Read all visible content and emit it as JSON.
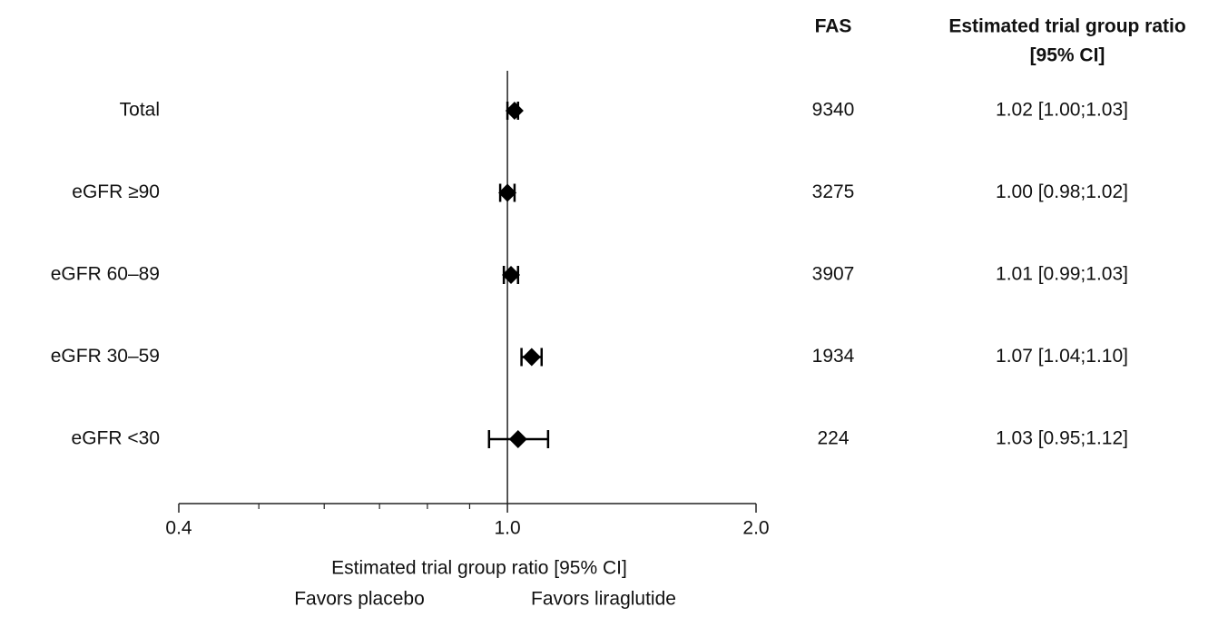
{
  "chart_data": {
    "type": "forest",
    "categories": [
      "Total",
      "eGFR ≥90",
      "eGFR 60–89",
      "eGFR 30–59",
      "eGFR <30"
    ],
    "values": [
      1.02,
      1.0,
      1.01,
      1.07,
      1.03
    ],
    "lower": [
      1.0,
      0.98,
      0.99,
      1.04,
      0.95
    ],
    "upper": [
      1.03,
      1.02,
      1.03,
      1.1,
      1.12
    ],
    "value_labels": [
      "1.02 [1.00;1.03]",
      "1.00 [0.98;1.02]",
      "1.01 [0.99;1.03]",
      "1.07 [1.04;1.10]",
      "1.03 [0.95;1.12]"
    ],
    "fas": [
      9340,
      3275,
      3907,
      1934,
      224
    ],
    "fas_header": "FAS",
    "ci_header": [
      "Estimated trial group ratio",
      "[95% CI]"
    ],
    "xlabel": "Estimated trial group ratio [95% CI]",
    "favors_left": "Favors placebo",
    "favors_right": "Favors liraglutide",
    "xscale": "log",
    "xlim": [
      0.4,
      2.0
    ],
    "xticks": [
      0.4,
      {
        "value": 1.0,
        "label": "1.0"
      },
      {
        "value": 2.0,
        "label": "2.0"
      }
    ],
    "xminorticks": [
      0.5,
      0.6,
      0.7,
      0.8,
      0.9
    ],
    "reference": 1.0,
    "color": "#000000"
  }
}
